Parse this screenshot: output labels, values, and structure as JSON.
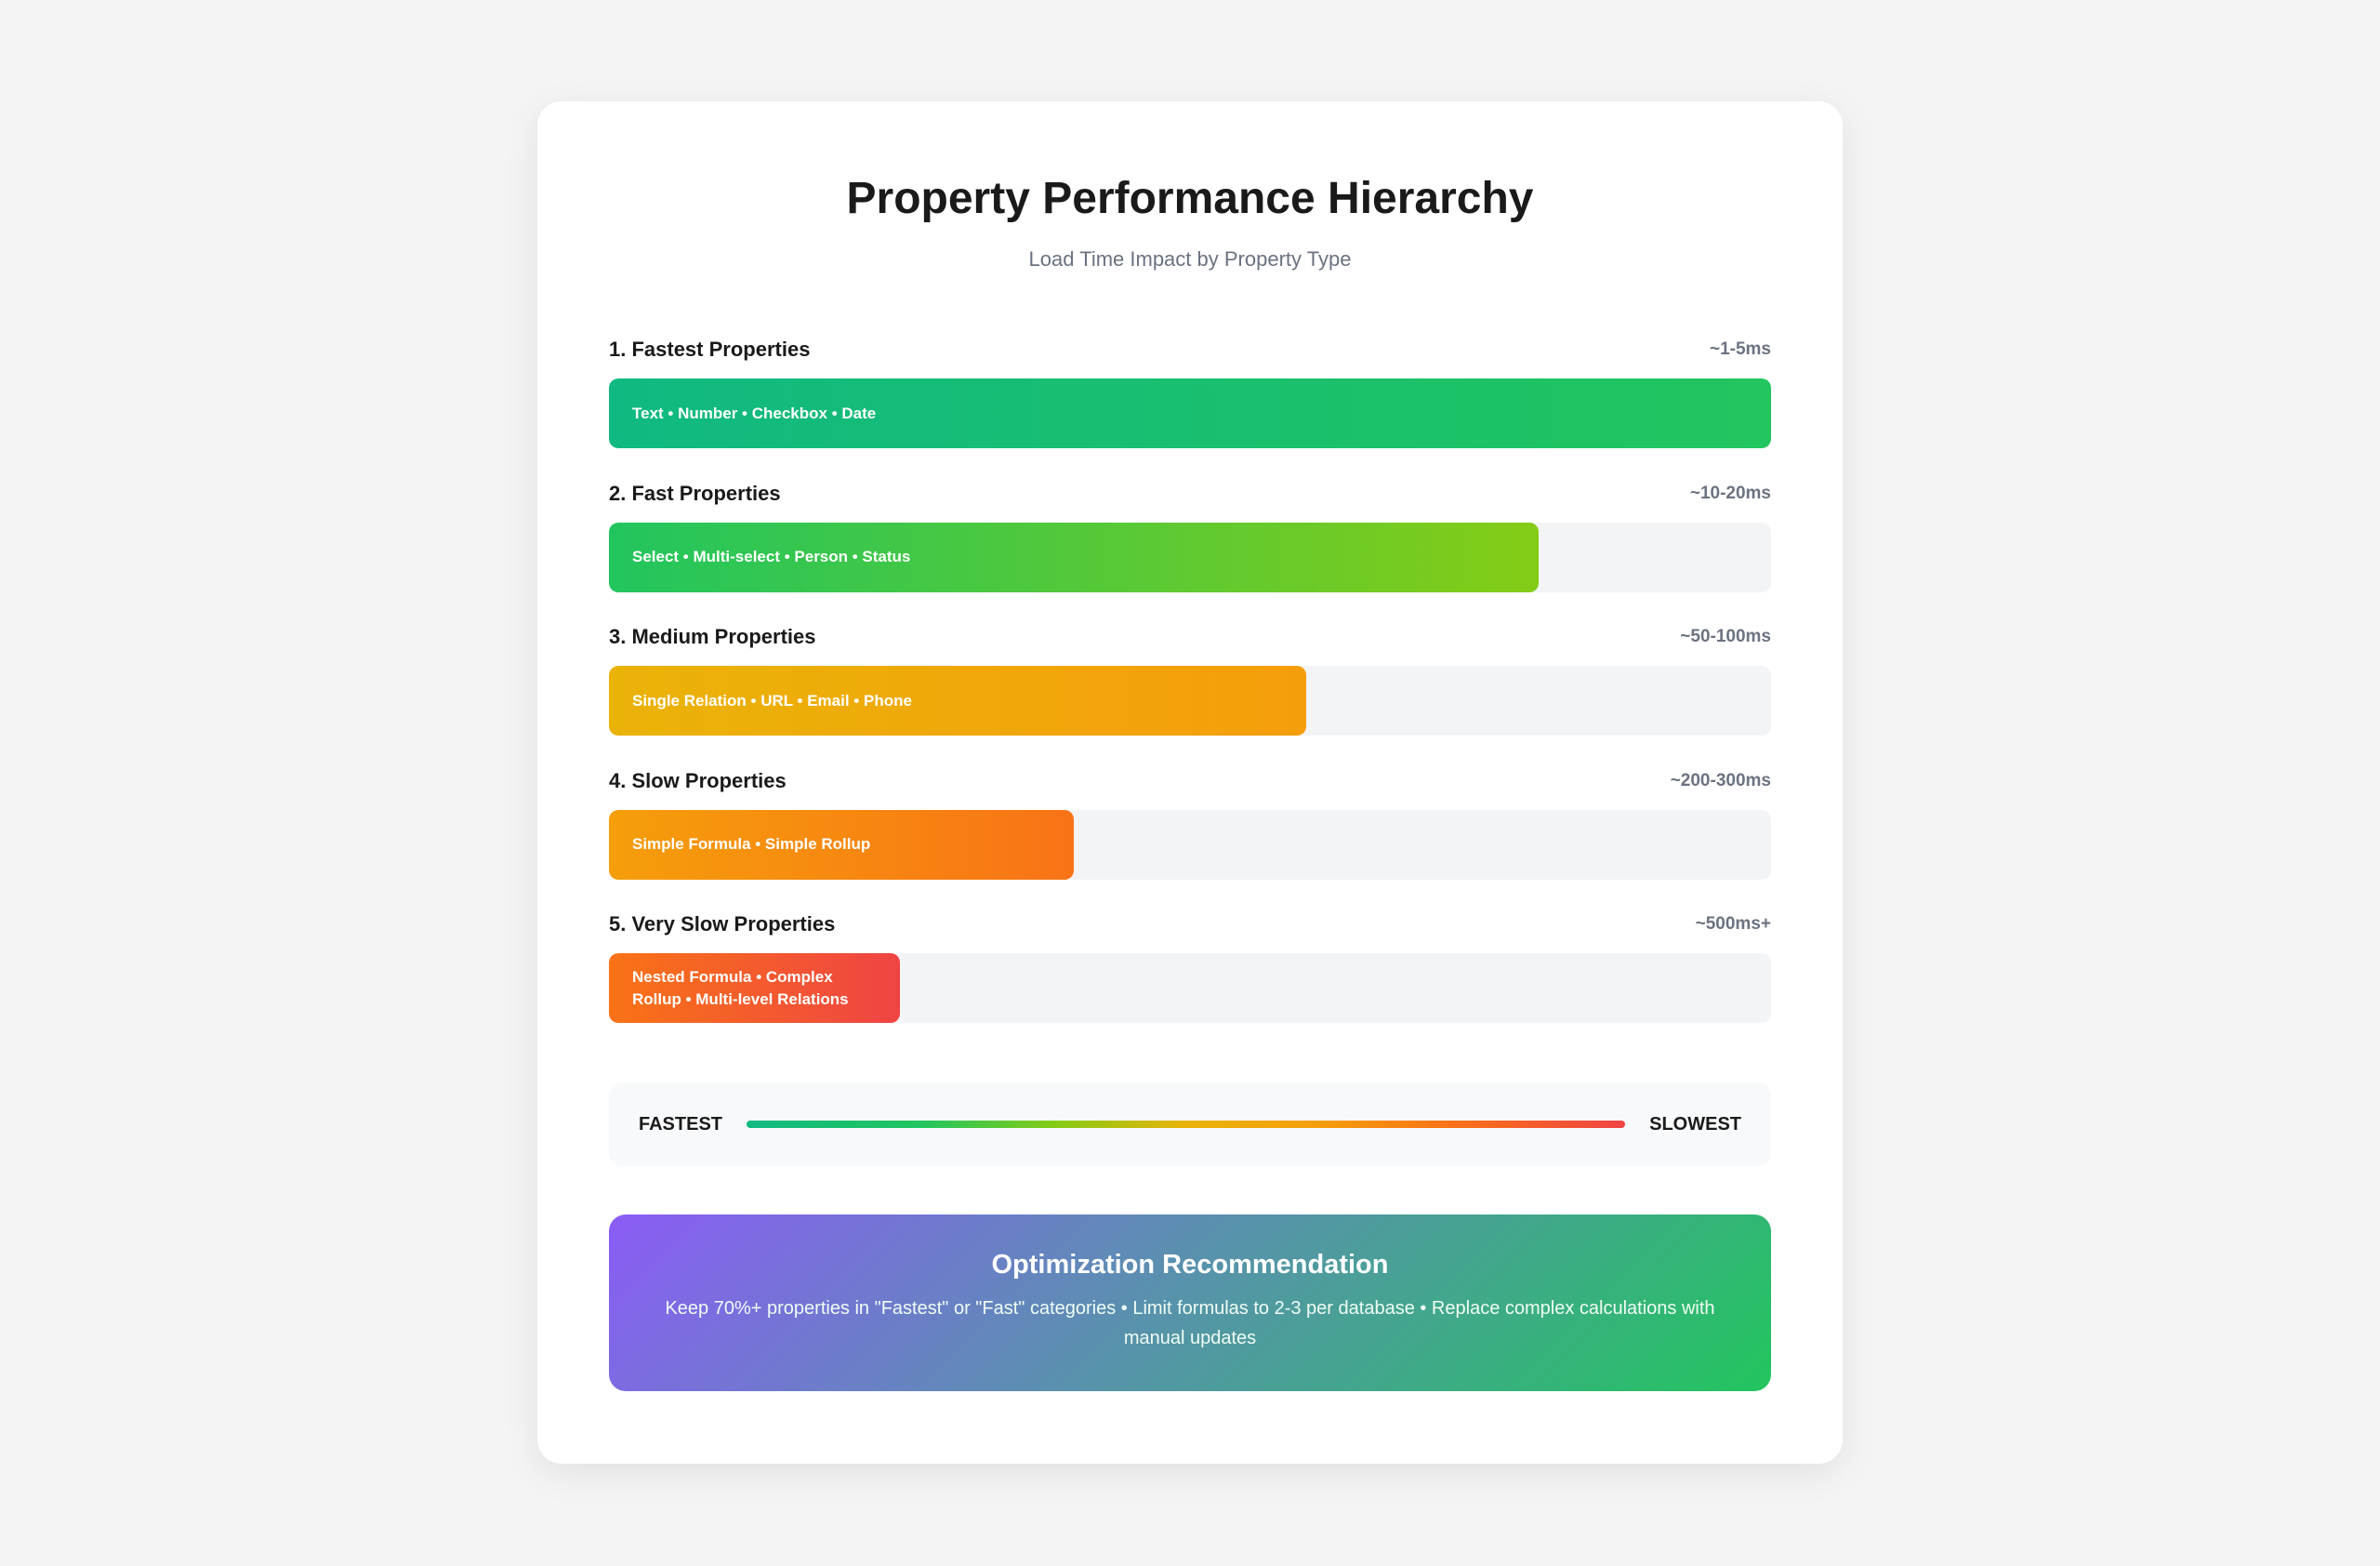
{
  "header": {
    "title": "Property Performance Hierarchy",
    "subtitle": "Load Time Impact by Property Type"
  },
  "tiers": [
    {
      "label": "1. Fastest Properties",
      "time": "~1-5ms",
      "items": "Text • Number • Checkbox • Date",
      "fill_percent": 100,
      "colors": [
        "#10b981",
        "#22c55e"
      ]
    },
    {
      "label": "2. Fast Properties",
      "time": "~10-20ms",
      "items": "Select • Multi-select • Person • Status",
      "fill_percent": 80,
      "colors": [
        "#22c55e",
        "#84cc16"
      ]
    },
    {
      "label": "3. Medium Properties",
      "time": "~50-100ms",
      "items": "Single Relation • URL • Email • Phone",
      "fill_percent": 60,
      "colors": [
        "#eab308",
        "#f59e0b"
      ]
    },
    {
      "label": "4. Slow Properties",
      "time": "~200-300ms",
      "items": "Simple Formula • Simple Rollup",
      "fill_percent": 40,
      "colors": [
        "#f59e0b",
        "#f97316"
      ]
    },
    {
      "label": "5. Very Slow Properties",
      "time": "~500ms+",
      "items": "Nested Formula • Complex Rollup • Multi-level Relations",
      "fill_percent": 25,
      "colors": [
        "#f97316",
        "#ef4444"
      ]
    }
  ],
  "legend": {
    "start": "FASTEST",
    "end": "SLOWEST"
  },
  "recommendation": {
    "title": "Optimization Recommendation",
    "body": "Keep 70%+ properties in \"Fastest\" or \"Fast\" categories • Limit formulas to 2-3 per database • Replace complex calculations with manual updates"
  }
}
